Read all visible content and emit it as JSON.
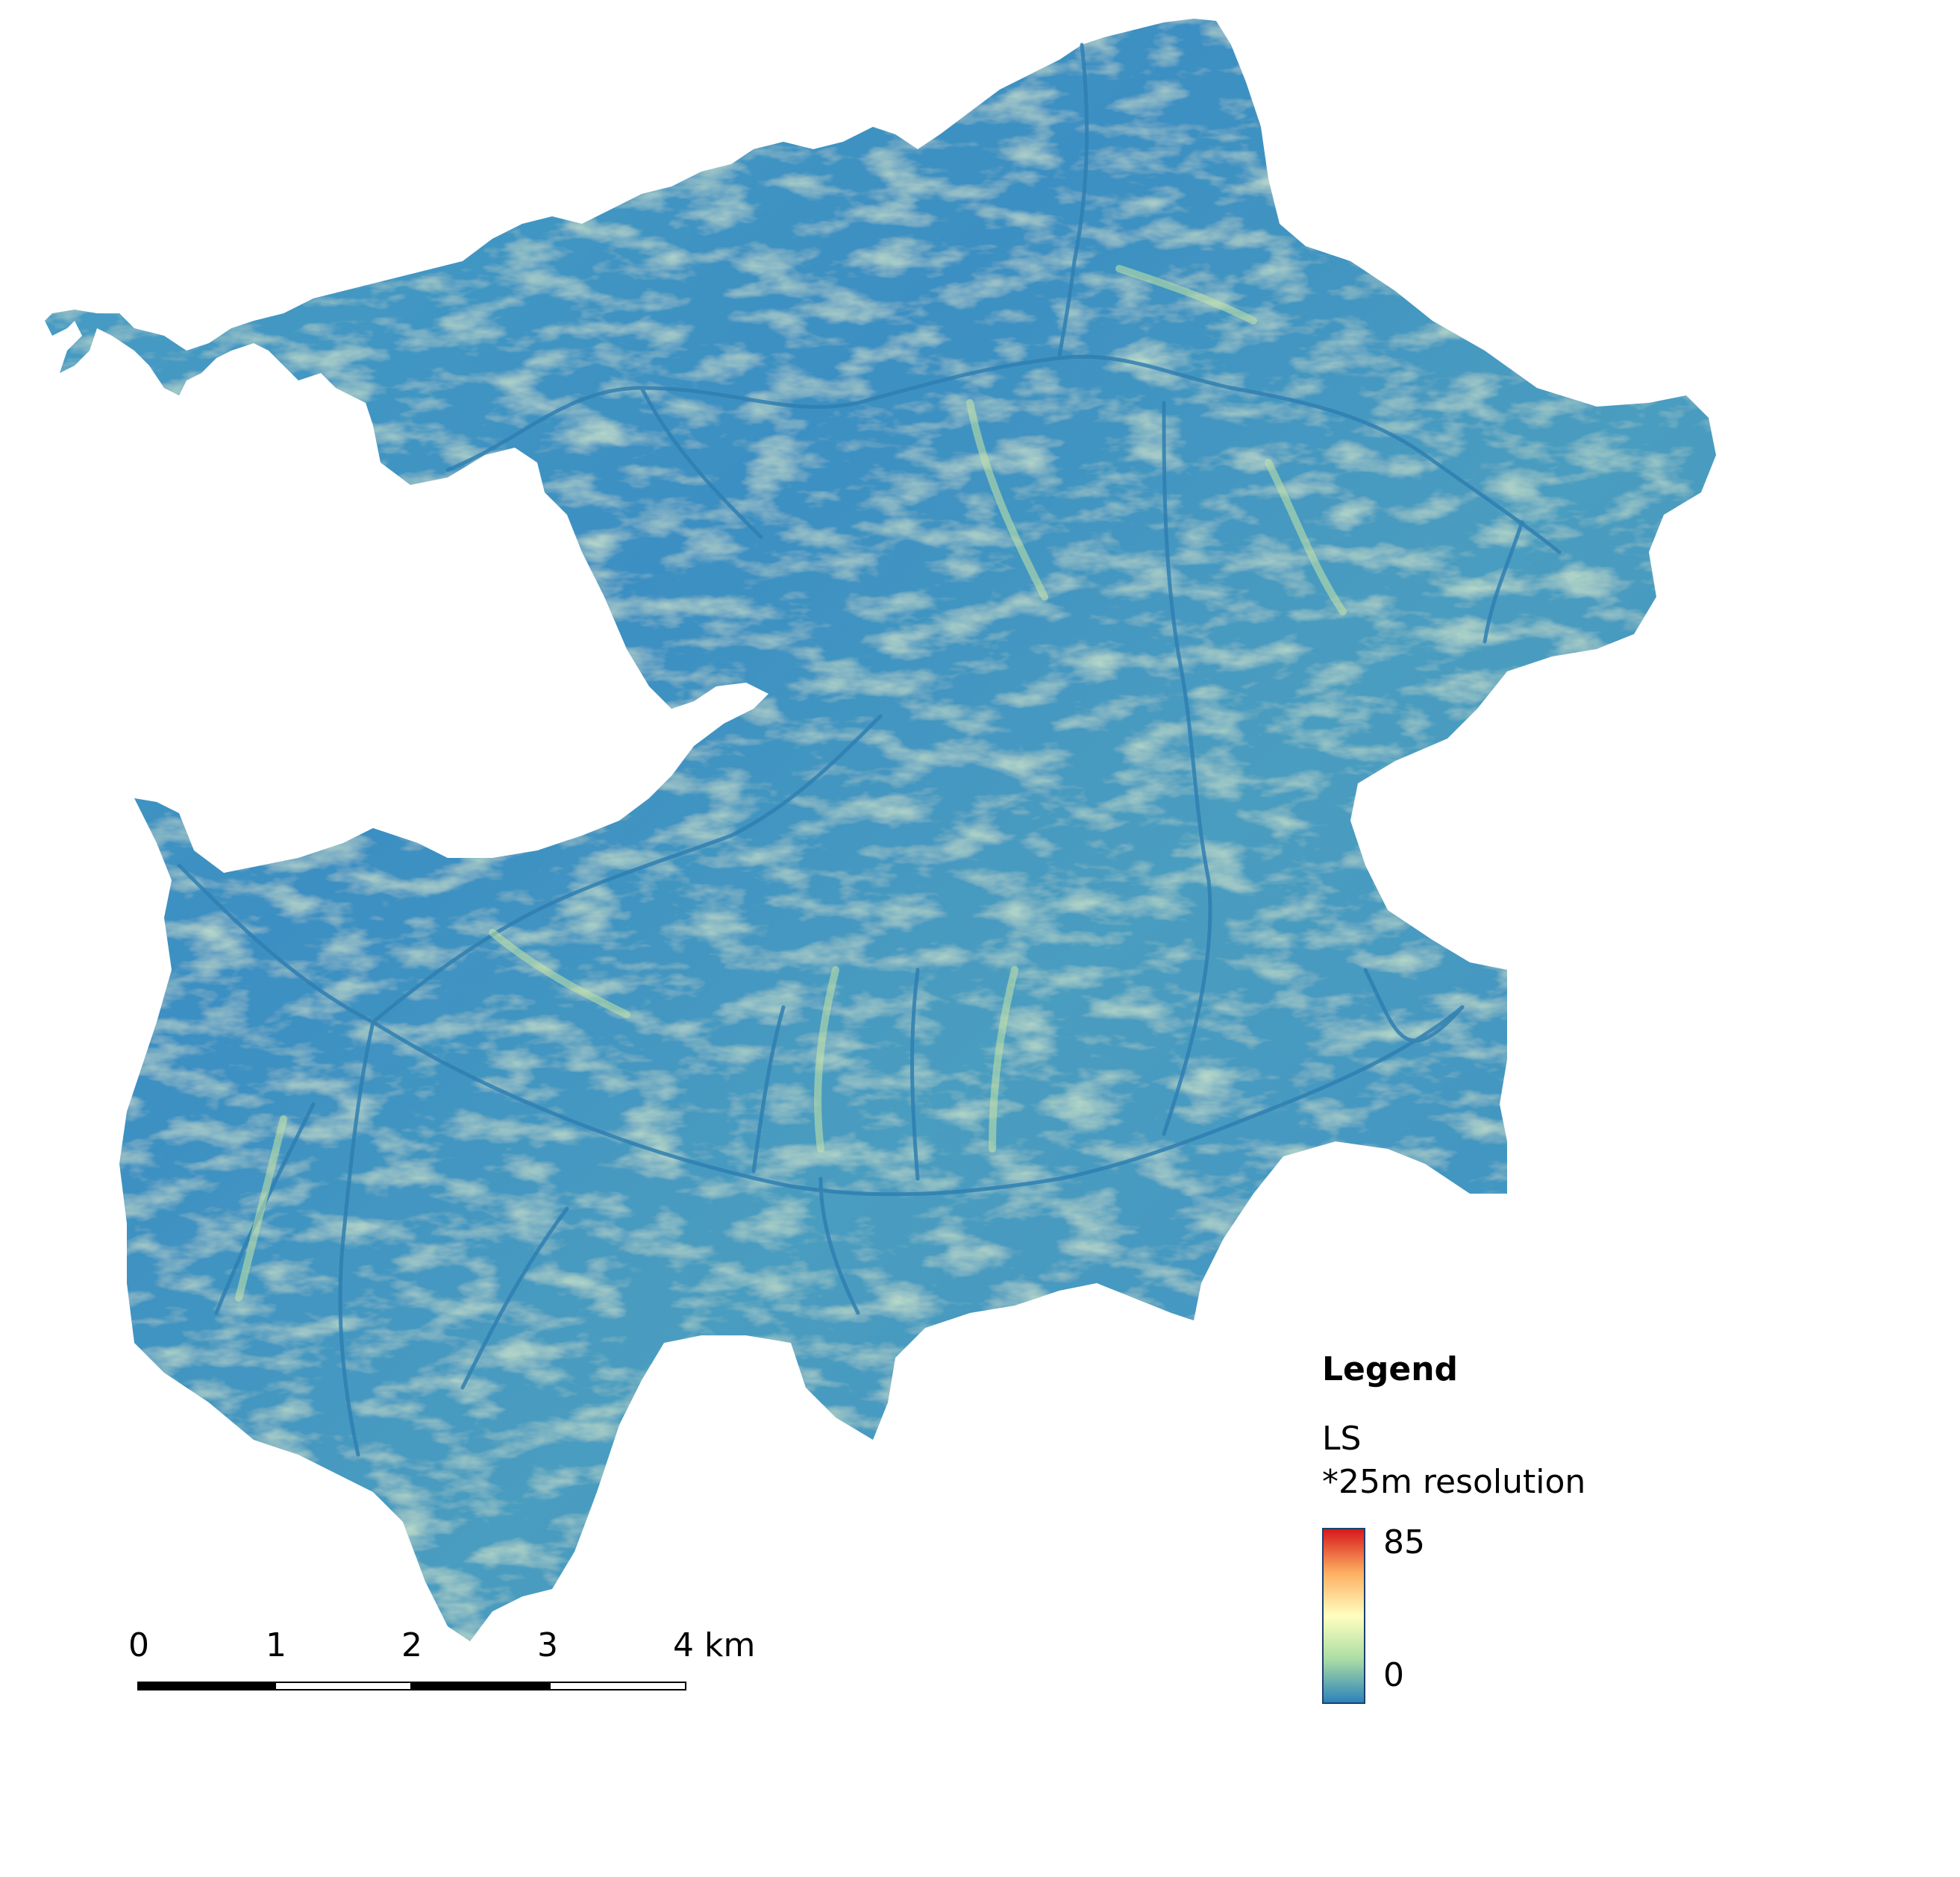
{
  "map": {
    "colors": {
      "background": "#ffffff",
      "low": "#2b83ba",
      "mid": "#abdda4",
      "neutral": "#ffffbf",
      "high_mid": "#fdae61",
      "high": "#d7191c",
      "terrain_base": "#3f95c2"
    },
    "shading": "stream-channel relief pattern"
  },
  "legend": {
    "title": "Legend",
    "layer": "LS",
    "note": "*25m resolution",
    "max_label": "85",
    "min_label": "0",
    "min_value": 0,
    "max_value": 85
  },
  "scalebar": {
    "ticks": [
      "0",
      "1",
      "2",
      "3",
      "4 km"
    ]
  }
}
